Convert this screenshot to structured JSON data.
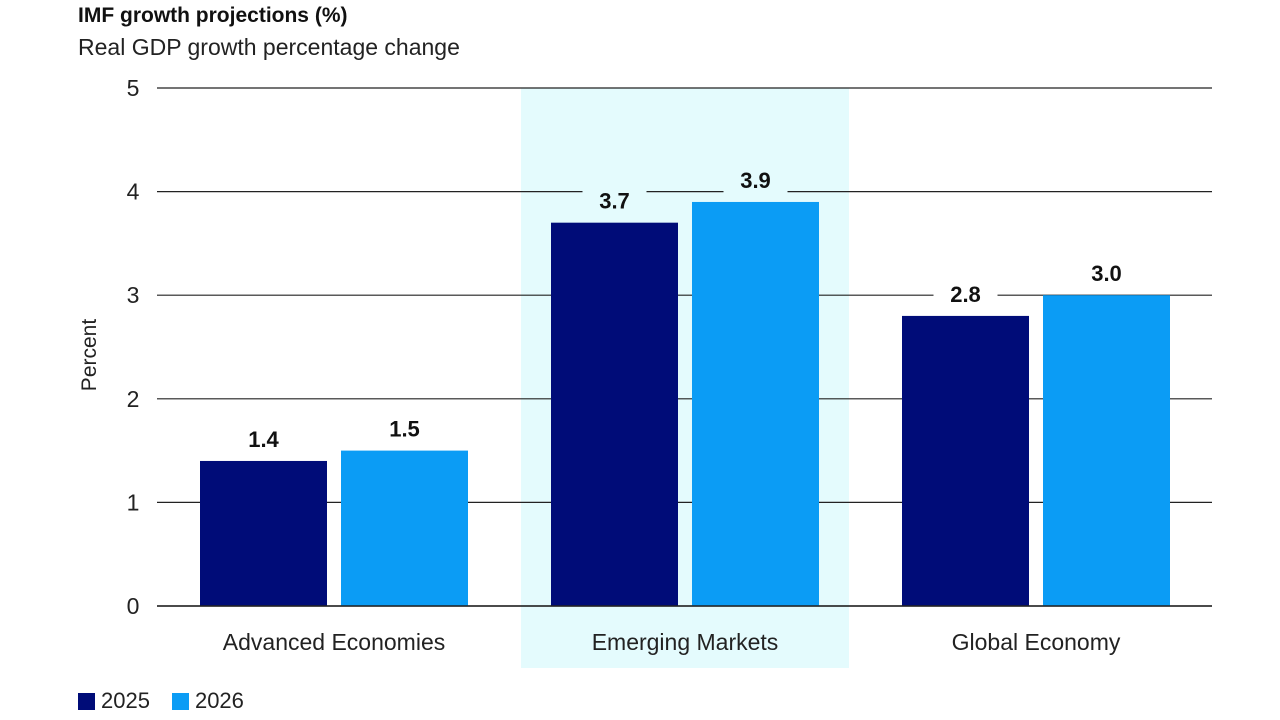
{
  "chart_data": {
    "type": "bar",
    "title": "IMF growth projections (%)",
    "subtitle": "Real GDP growth percentage change",
    "ylabel": "Percent",
    "xlabel": "",
    "ylim": [
      0,
      5
    ],
    "yticks": [
      "0",
      "1",
      "2",
      "3",
      "4",
      "5"
    ],
    "grid": true,
    "legend_position": "bottom-left",
    "categories": [
      "Advanced Economies",
      "Emerging Markets",
      "Global Economy"
    ],
    "highlighted_category": "Emerging Markets",
    "series": [
      {
        "name": "2025",
        "color": "#000c78",
        "values": [
          1.4,
          3.7,
          2.8
        ],
        "labels": [
          "1.4",
          "3.7",
          "2.8"
        ]
      },
      {
        "name": "2026",
        "color": "#0b9cf5",
        "values": [
          1.5,
          3.9,
          3.0
        ],
        "labels": [
          "1.5",
          "3.9",
          "3.0"
        ]
      }
    ],
    "highlight_color": "#e4fbfd"
  }
}
